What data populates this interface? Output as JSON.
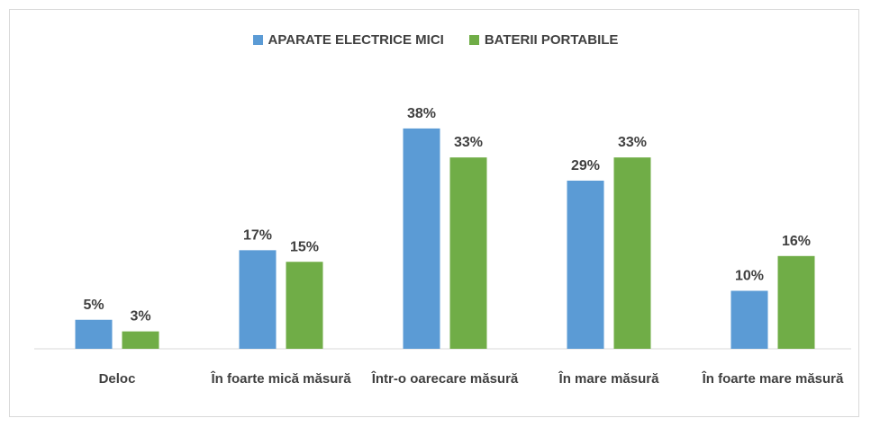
{
  "chart_data": {
    "type": "bar",
    "categories": [
      "Deloc",
      "În foarte mică măsură",
      "Într-o oarecare măsură",
      "În mare măsură",
      "În foarte mare măsură"
    ],
    "series": [
      {
        "name": "APARATE ELECTRICE MICI",
        "color": "#5b9bd5",
        "values": [
          5,
          17,
          38,
          29,
          10
        ],
        "value_labels": [
          "5%",
          "17%",
          "38%",
          "29%",
          "10%"
        ]
      },
      {
        "name": "BATERII PORTABILE",
        "color": "#70ad47",
        "values": [
          3,
          15,
          33,
          33,
          16
        ],
        "value_labels": [
          "3%",
          "15%",
          "33%",
          "33%",
          "16%"
        ]
      }
    ],
    "legend": "top"
  }
}
